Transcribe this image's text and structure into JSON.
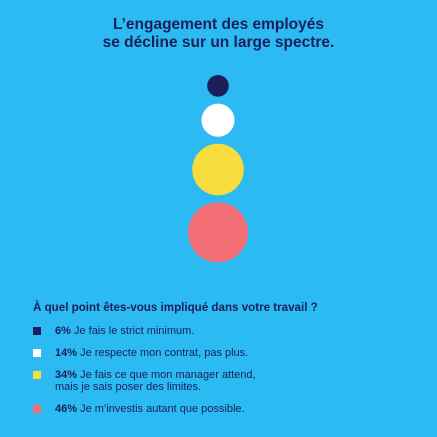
{
  "title": {
    "line1": "L’engagement des employés",
    "line2": "se décline sur un large spectre."
  },
  "chart_data": {
    "type": "bubble",
    "question": "À quel point êtes-vous impliqué dans votre travail ?",
    "value_unit": "%",
    "items": [
      {
        "value": 6,
        "pct_label": "6%",
        "lines": [
          "Je fais le strict minimum."
        ],
        "color": "#1a1f5a"
      },
      {
        "value": 14,
        "pct_label": "14%",
        "lines": [
          "Je respecte mon contrat, pas plus."
        ],
        "color": "#ffffff"
      },
      {
        "value": 34,
        "pct_label": "34%",
        "lines": [
          "Je fais ce que mon manager attend,",
          "mais je sais poser des limites."
        ],
        "color": "#f7dc3d"
      },
      {
        "value": 46,
        "pct_label": "46%",
        "lines": [
          "Je m’investis autant que possible."
        ],
        "color": "#f36d74"
      }
    ]
  }
}
